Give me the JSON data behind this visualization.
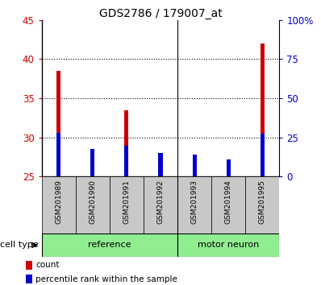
{
  "title": "GDS2786 / 179007_at",
  "categories": [
    "GSM201989",
    "GSM201990",
    "GSM201991",
    "GSM201992",
    "GSM201993",
    "GSM201994",
    "GSM201995"
  ],
  "count_values": [
    38.5,
    28.5,
    33.5,
    27.5,
    26.5,
    26.5,
    42.0
  ],
  "percentile_values": [
    30.6,
    28.5,
    29.0,
    28.0,
    27.8,
    27.2,
    30.5
  ],
  "ymin": 25,
  "ymax": 45,
  "yticks": [
    25,
    30,
    35,
    40,
    45
  ],
  "y2min": 0,
  "y2max": 100,
  "y2ticks": [
    0,
    25,
    50,
    75,
    100
  ],
  "y2ticklabels": [
    "0",
    "25",
    "50",
    "75",
    "100%"
  ],
  "count_color": "#cc0000",
  "percentile_color": "#0000cc",
  "ref_color": "#90ee90",
  "mn_color": "#90ee90",
  "gray_color": "#c8c8c8",
  "reference_label": "reference",
  "motor_neuron_label": "motor neuron",
  "cell_type_label": "cell type",
  "legend_count": "count",
  "legend_percentile": "percentile rank within the sample",
  "n_reference": 4,
  "n_total": 7,
  "group_sep": 3.5,
  "bar_width": 0.12,
  "pct_bar_width": 0.12,
  "title_fontsize": 10,
  "tick_fontsize": 8.5,
  "legend_fontsize": 7.5,
  "xlabel_fontsize": 6.5,
  "group_fontsize": 8
}
